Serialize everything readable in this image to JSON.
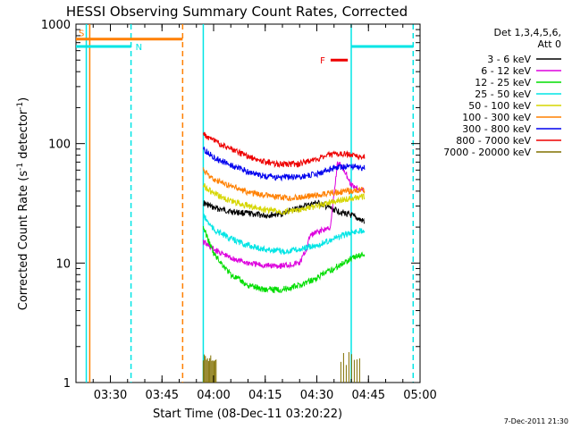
{
  "chart_data": {
    "type": "line",
    "title": "HESSI Observing Summary Count Rates, Corrected",
    "xlabel": "Start Time (08-Dec-11 03:20:22)",
    "ylabel_main": "Corrected Count Rate (s",
    "ylabel_sup1": "-1",
    "ylabel_mid": " detector",
    "ylabel_sup2": "-1",
    "ylabel_end": ")",
    "yscale": "log",
    "ylim": [
      1,
      1000
    ],
    "xlim": [
      "03:20",
      "05:00"
    ],
    "x_ticks": [
      "03:30",
      "03:45",
      "04:00",
      "04:15",
      "04:30",
      "04:45",
      "05:00"
    ],
    "y_ticks": [
      "1",
      "10",
      "100",
      "1000"
    ],
    "legend_title": "Det 1,3,4,5,6,",
    "legend_subtitle": "Att 0",
    "legend_placement": "right",
    "footer_stamp": "7-Dec-2011 21:30",
    "series": [
      {
        "name": "3 - 6 keV",
        "color": "#000000",
        "x": [
          "03:57",
          "04:00",
          "04:05",
          "04:10",
          "04:15",
          "04:20",
          "04:25",
          "04:30",
          "04:35",
          "04:40",
          "04:44"
        ],
        "y": [
          32,
          29,
          27,
          26,
          25,
          26,
          29,
          32,
          28,
          25,
          22
        ]
      },
      {
        "name": "6 - 12 keV",
        "color": "#dd00dd",
        "x": [
          "03:57",
          "04:00",
          "04:05",
          "04:10",
          "04:15",
          "04:20",
          "04:25",
          "04:27",
          "04:28",
          "04:30",
          "04:34",
          "04:36",
          "04:38",
          "04:40",
          "04:44"
        ],
        "y": [
          15,
          13,
          11,
          10,
          9.5,
          9.5,
          10,
          13,
          17,
          18,
          20,
          70,
          60,
          45,
          40
        ]
      },
      {
        "name": "12 - 25 keV",
        "color": "#00dd00",
        "x": [
          "03:57",
          "04:00",
          "04:05",
          "04:10",
          "04:15",
          "04:20",
          "04:25",
          "04:30",
          "04:35",
          "04:40",
          "04:44"
        ],
        "y": [
          20,
          12,
          8,
          6.5,
          6,
          6,
          6.5,
          7.5,
          9,
          11,
          12
        ]
      },
      {
        "name": "25 - 50 keV",
        "color": "#00e5e5",
        "x": [
          "03:57",
          "04:00",
          "04:05",
          "04:10",
          "04:15",
          "04:20",
          "04:25",
          "04:30",
          "04:35",
          "04:40",
          "04:44"
        ],
        "y": [
          25,
          19,
          16,
          14,
          13,
          12.5,
          13,
          14,
          16,
          18,
          19
        ]
      },
      {
        "name": "50 - 100 keV",
        "color": "#d6d600",
        "x": [
          "03:57",
          "04:00",
          "04:05",
          "04:10",
          "04:15",
          "04:20",
          "04:25",
          "04:30",
          "04:35",
          "04:40",
          "04:44"
        ],
        "y": [
          45,
          38,
          33,
          30,
          28,
          27,
          27.5,
          30,
          33,
          35,
          36
        ]
      },
      {
        "name": "100 - 300 keV",
        "color": "#ff8000",
        "x": [
          "03:57",
          "04:00",
          "04:05",
          "04:10",
          "04:15",
          "04:20",
          "04:25",
          "04:30",
          "04:35",
          "04:40",
          "04:44"
        ],
        "y": [
          60,
          50,
          44,
          39,
          37,
          35,
          35.5,
          37,
          39,
          40,
          41
        ]
      },
      {
        "name": "300 - 800 keV",
        "color": "#0000ee",
        "x": [
          "03:57",
          "04:00",
          "04:05",
          "04:10",
          "04:15",
          "04:20",
          "04:25",
          "04:30",
          "04:35",
          "04:40",
          "04:44"
        ],
        "y": [
          90,
          77,
          66,
          58,
          53,
          52,
          53,
          56,
          62,
          65,
          62
        ]
      },
      {
        "name": "800 - 7000 keV",
        "color": "#ee0000",
        "x": [
          "03:57",
          "04:00",
          "04:05",
          "04:10",
          "04:15",
          "04:20",
          "04:25",
          "04:30",
          "04:35",
          "04:40",
          "04:44"
        ],
        "y": [
          120,
          105,
          90,
          78,
          70,
          67,
          68,
          75,
          82,
          80,
          77
        ]
      },
      {
        "name": "7000 - 20000 keV",
        "color": "#807000",
        "x": [
          "03:57",
          "04:00",
          "04:01"
        ],
        "y": [
          1.8,
          1.8,
          1.8
        ]
      }
    ],
    "bars": [
      {
        "label": "S",
        "color": "#ff8000",
        "x_start": "03:20",
        "x_end": "03:51",
        "level": 750
      },
      {
        "label": "N",
        "color": "#00e5e5",
        "x_start": "03:20",
        "x_end": "03:36",
        "level": 650
      },
      {
        "label": "F",
        "color": "#ee0000",
        "x_start": "04:34",
        "x_end": "04:39",
        "level": 500
      },
      {
        "label": "",
        "color": "#00e5e5",
        "x_start": "04:40",
        "x_end": "04:58",
        "level": 650
      }
    ],
    "vlines": [
      {
        "x": "03:24",
        "color": "#ff8000",
        "style": "solid"
      },
      {
        "x": "03:23",
        "color": "#00e5e5",
        "style": "solid"
      },
      {
        "x": "03:36",
        "color": "#00e5e5",
        "style": "dashed"
      },
      {
        "x": "03:51",
        "color": "#ff8000",
        "style": "dashed"
      },
      {
        "x": "03:57",
        "color": "#00e5e5",
        "style": "solid"
      },
      {
        "x": "04:40",
        "color": "#00e5e5",
        "style": "solid"
      },
      {
        "x": "04:58",
        "color": "#00e5e5",
        "style": "dashed"
      }
    ]
  }
}
